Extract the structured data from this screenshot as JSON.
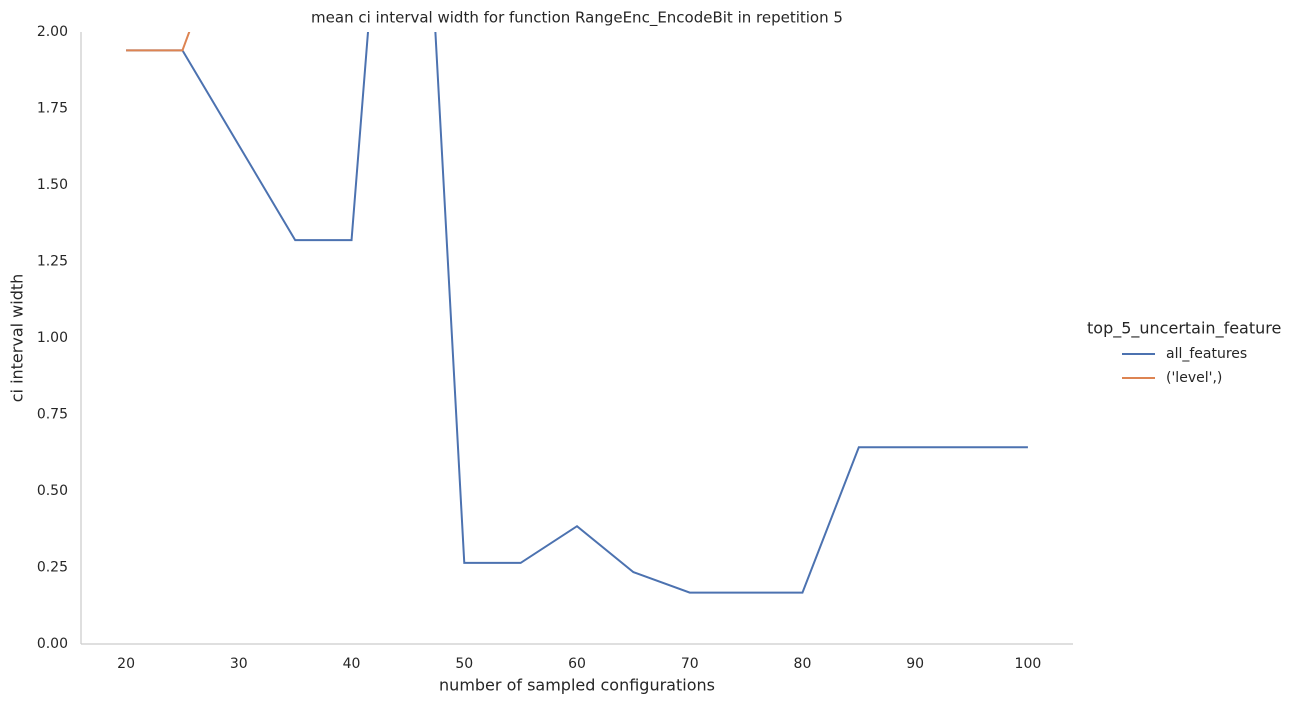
{
  "chart_data": {
    "type": "line",
    "title": "mean ci interval width for function RangeEnc_EncodeBit in repetition 5",
    "x_label": "number of sampled configurations",
    "y_label": "ci interval width",
    "x": [
      20,
      25,
      30,
      35,
      40,
      45,
      50,
      55,
      60,
      65,
      70,
      75,
      80,
      85,
      90,
      95,
      100
    ],
    "series": [
      {
        "name": "all_features",
        "color": "#4c72b0",
        "values": [
          1.94,
          1.94,
          1.63,
          1.32,
          1.32,
          3.65,
          0.265,
          0.265,
          0.385,
          0.235,
          0.168,
          0.168,
          0.168,
          0.643,
          0.643,
          0.643,
          0.643
        ]
      },
      {
        "name": "('level',)",
        "color": "#dd8452",
        "values": [
          1.94,
          1.94,
          2.44,
          null,
          null,
          null,
          null,
          null,
          null,
          null,
          null,
          null,
          null,
          null,
          null,
          null,
          null
        ]
      }
    ],
    "legend_title": "top_5_uncertain_feature",
    "legend_position": "right",
    "xlim": [
      16,
      104
    ],
    "ylim": [
      0,
      2
    ],
    "xticks": [
      20,
      30,
      40,
      50,
      60,
      70,
      80,
      90,
      100
    ],
    "yticks": [
      {
        "value": 0,
        "label": "0.00"
      },
      {
        "value": 0.25,
        "label": "0.25"
      },
      {
        "value": 0.5,
        "label": "0.50"
      },
      {
        "value": 0.75,
        "label": "0.75"
      },
      {
        "value": 1,
        "label": "1.00"
      },
      {
        "value": 1.25,
        "label": "1.25"
      },
      {
        "value": 1.5,
        "label": "1.50"
      },
      {
        "value": 1.75,
        "label": "1.75"
      },
      {
        "value": 2,
        "label": "2.00"
      }
    ],
    "grid": false
  }
}
